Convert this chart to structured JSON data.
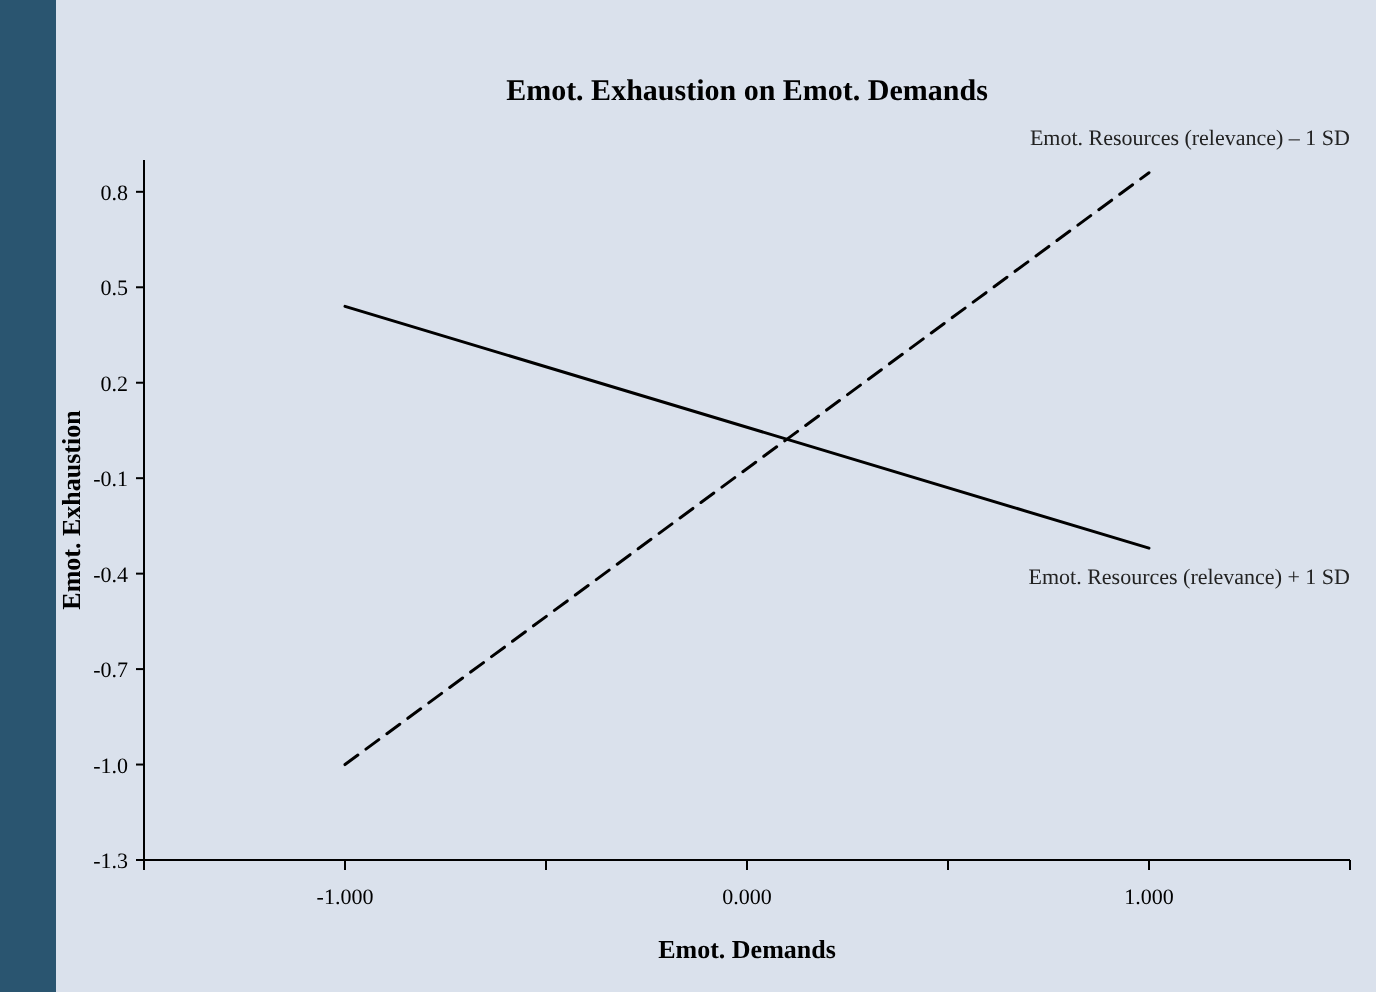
{
  "chart_data": {
    "type": "line",
    "title": "Emot. Exhaustion on Emot. Demands",
    "xlabel": "Emot. Demands",
    "ylabel": "Emot. Exhaustion",
    "x": [
      -1,
      1
    ],
    "series": [
      {
        "name": "Emot. Resources (relevance) – 1 SD",
        "color": "#000000",
        "values": [
          -1.0,
          0.86
        ],
        "line_style": "dashed"
      },
      {
        "name": "Emot. Resources (relevance) + 1 SD",
        "color": "#000000",
        "values": [
          0.44,
          -0.32
        ],
        "line_style": "solid"
      }
    ],
    "xlim": [
      -1.5,
      1.5
    ],
    "xticks": [
      {
        "value": -1.5,
        "label": null
      },
      {
        "value": -1,
        "label": "-1.000"
      },
      {
        "value": -0.5,
        "label": null
      },
      {
        "value": 0,
        "label": "0.000"
      },
      {
        "value": 0.5,
        "label": null
      },
      {
        "value": 1,
        "label": "1.000"
      },
      {
        "value": 1.5,
        "label": null
      }
    ],
    "ylim": [
      -1.3,
      0.9
    ],
    "yticks": [
      {
        "value": -1.3,
        "label": "-1.3"
      },
      {
        "value": -1,
        "label": "-1.0"
      },
      {
        "value": -0.7,
        "label": "-0.7"
      },
      {
        "value": -0.4,
        "label": "-0.4"
      },
      {
        "value": -0.1,
        "label": "-0.1"
      },
      {
        "value": 0.2,
        "label": "0.2"
      },
      {
        "value": 0.5,
        "label": "0.5"
      },
      {
        "value": 0.8,
        "label": "0.8"
      }
    ],
    "grid": false,
    "marker": "none"
  }
}
